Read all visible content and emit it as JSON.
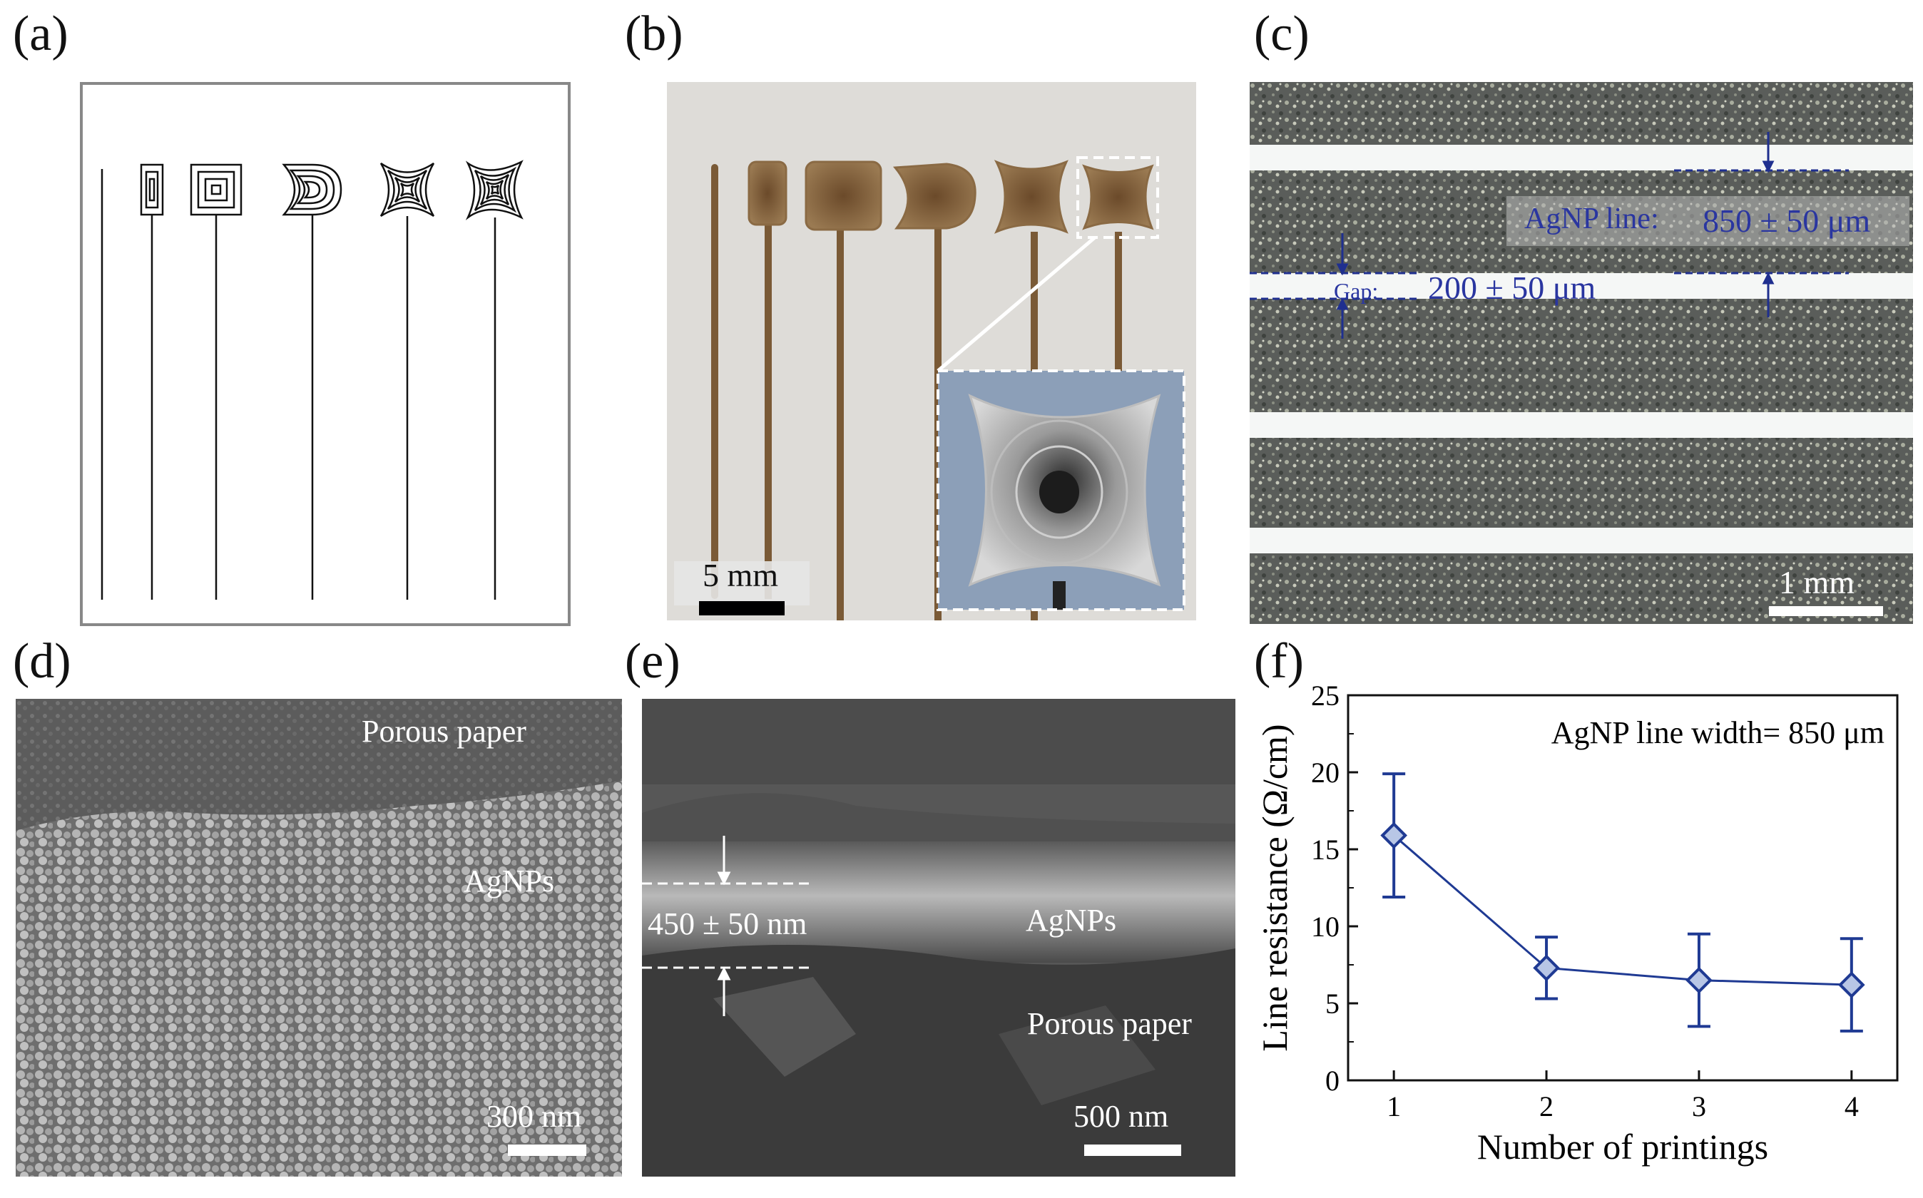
{
  "panels": {
    "a": {
      "label": "(a)"
    },
    "b": {
      "label": "(b)",
      "scale_bar": "5 mm"
    },
    "c": {
      "label": "(c)",
      "line_annotation_label": "AgNP line:",
      "line_annotation_value": "850 ± 50 μm",
      "gap_label": "Gap:",
      "gap_value": "200 ± 50 μm",
      "scale_bar": "1 mm"
    },
    "d": {
      "label": "(d)",
      "top_text": "Porous paper",
      "mid_text": "AgNPs",
      "scale_bar": "300 nm"
    },
    "e": {
      "label": "(e)",
      "thickness": "450 ± 50 nm",
      "layer_text": "AgNPs",
      "bottom_text": "Porous paper",
      "scale_bar": "500 nm"
    },
    "f": {
      "label": "(f)",
      "annotation": "AgNP line width= 850 μm"
    }
  },
  "chart_data": {
    "type": "line",
    "title": "",
    "xlabel": "Number of printings",
    "ylabel": "Line resistance (Ω/cm)",
    "x": [
      1,
      2,
      3,
      4
    ],
    "xticks": [
      "1",
      "2",
      "3",
      "4"
    ],
    "yticks": [
      "0",
      "5",
      "10",
      "15",
      "20",
      "25"
    ],
    "xlim": [
      0.7,
      4.3
    ],
    "ylim": [
      0,
      25
    ],
    "series": [
      {
        "values": [
          15.9,
          7.3,
          6.5,
          6.2
        ],
        "err": [
          4.0,
          2.0,
          3.0,
          3.0
        ]
      }
    ],
    "marker": "diamond",
    "color": "#1f3a93",
    "grid": false,
    "legend": "none"
  }
}
